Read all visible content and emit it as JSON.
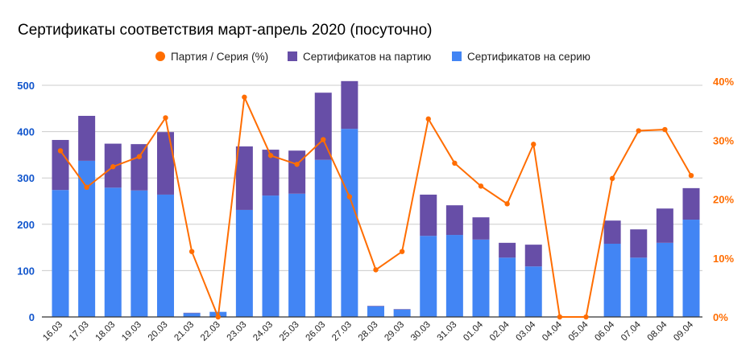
{
  "chart_data": {
    "type": "bar",
    "title": "Сертификаты соответствия март-апрель 2020 (посуточно)",
    "categories": [
      "16.03",
      "17.03",
      "18.03",
      "19.03",
      "20.03",
      "21.03",
      "22.03",
      "23.03",
      "24.03",
      "25.03",
      "26.03",
      "27.03",
      "28.03",
      "29.03",
      "30.03",
      "31.03",
      "01.04",
      "02.04",
      "03.04",
      "04.04",
      "05.04",
      "06.04",
      "07.04",
      "08.04",
      "09.04"
    ],
    "series": [
      {
        "name": "Сертификатов на серию",
        "type": "stacked-bar",
        "axis": "left",
        "color": "#4285f4",
        "values": [
          274,
          337,
          279,
          273,
          264,
          8,
          11,
          231,
          262,
          266,
          339,
          406,
          23,
          16,
          175,
          177,
          167,
          128,
          109,
          1,
          0,
          158,
          128,
          160,
          210
        ]
      },
      {
        "name": "Сертификатов на партию",
        "type": "stacked-bar",
        "axis": "left",
        "color": "#674ea7",
        "values": [
          108,
          97,
          95,
          100,
          135,
          1,
          0,
          137,
          99,
          93,
          145,
          103,
          1,
          1,
          89,
          64,
          48,
          32,
          47,
          0,
          0,
          50,
          61,
          74,
          68
        ]
      },
      {
        "name": "Партия / Серия (%)",
        "type": "line",
        "axis": "right",
        "color": "#ff6d01",
        "values": [
          28.2,
          22.0,
          25.5,
          27.2,
          33.8,
          11.1,
          0,
          37.3,
          27.4,
          25.9,
          30.1,
          20.4,
          8.0,
          11.1,
          33.6,
          26.1,
          22.2,
          19.2,
          29.3,
          0,
          0,
          23.5,
          31.6,
          31.8,
          24.0
        ]
      }
    ],
    "legend_order": [
      2,
      1,
      0
    ],
    "legend_position": "top",
    "left_axis": {
      "ylim": [
        0,
        500
      ],
      "ticks": [
        "0",
        "100",
        "200",
        "300",
        "400",
        "500"
      ],
      "color": "#1155cc"
    },
    "right_axis": {
      "ylim": [
        0,
        40
      ],
      "ticks": [
        "0%",
        "10%",
        "20%",
        "30%",
        "40%"
      ],
      "color": "#ff6d01"
    },
    "grid": true
  }
}
